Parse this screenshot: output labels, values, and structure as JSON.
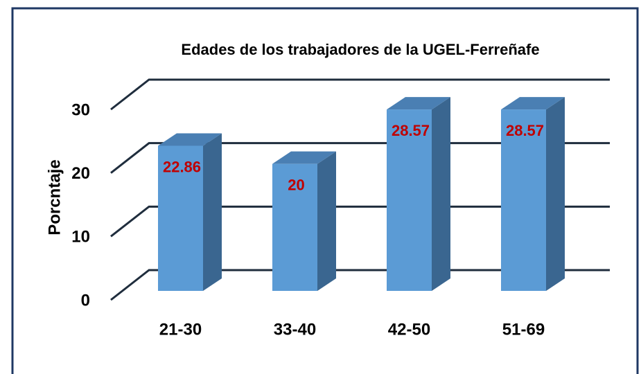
{
  "chart_data": {
    "type": "bar3d",
    "title": "Edades de los trabajadores de la UGEL-Ferreñafe",
    "y_label": "Porcntaje",
    "categories": [
      "21-30",
      "33-40",
      "42-50",
      "51-69"
    ],
    "values": [
      22.86,
      20,
      28.57,
      28.57
    ],
    "color": "#5b9bd5",
    "value_label_color": "#c00000",
    "ylim": [
      0,
      30
    ],
    "yticks": [
      0,
      10,
      20,
      30
    ],
    "grid": true
  }
}
